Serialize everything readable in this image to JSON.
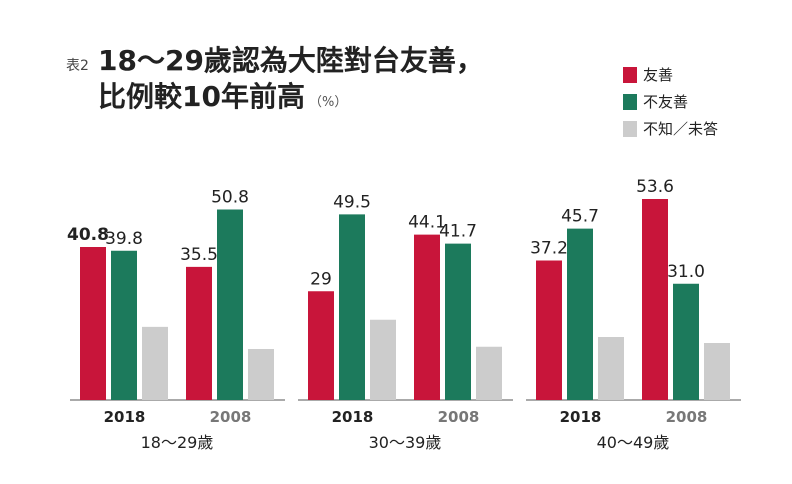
{
  "header": {
    "tag": "表2",
    "title": [
      "18～29歲認為大陸對台友善，",
      "比例較10年前高"
    ],
    "unit": "（%）"
  },
  "chart_data": [
    {
      "type": "bar",
      "xlabel": "18～29歲",
      "categories": [
        "2018",
        "2008"
      ],
      "ylim": [
        0,
        56
      ],
      "series": [
        {
          "name": "友善",
          "color": "#c8153a",
          "values": [
            40.8,
            35.5
          ]
        },
        {
          "name": "不友善",
          "color": "#1c7a5c",
          "values": [
            39.8,
            50.8
          ]
        },
        {
          "name": "不知／未答",
          "color": "#cccccc",
          "values": [
            19.5,
            13.6
          ]
        }
      ]
    },
    {
      "type": "bar",
      "xlabel": "30～39歲",
      "categories": [
        "2018",
        "2008"
      ],
      "ylim": [
        0,
        56
      ],
      "series": [
        {
          "name": "友善",
          "color": "#c8153a",
          "values": [
            29,
            44.1
          ]
        },
        {
          "name": "不友善",
          "color": "#1c7a5c",
          "values": [
            49.5,
            41.7
          ]
        },
        {
          "name": "不知／未答",
          "color": "#cccccc",
          "values": [
            21.4,
            14.2
          ]
        }
      ]
    },
    {
      "type": "bar",
      "xlabel": "40～49歲",
      "categories": [
        "2018",
        "2008"
      ],
      "ylim": [
        0,
        56
      ],
      "series": [
        {
          "name": "友善",
          "color": "#c8153a",
          "values": [
            37.2,
            53.6
          ]
        },
        {
          "name": "不友善",
          "color": "#1c7a5c",
          "values": [
            45.7,
            31.0
          ],
          "value_labels": [
            "45.7",
            "31.0"
          ]
        },
        {
          "name": "不知／未答",
          "color": "#cccccc",
          "values": [
            16.8,
            15.2
          ]
        }
      ]
    }
  ]
}
